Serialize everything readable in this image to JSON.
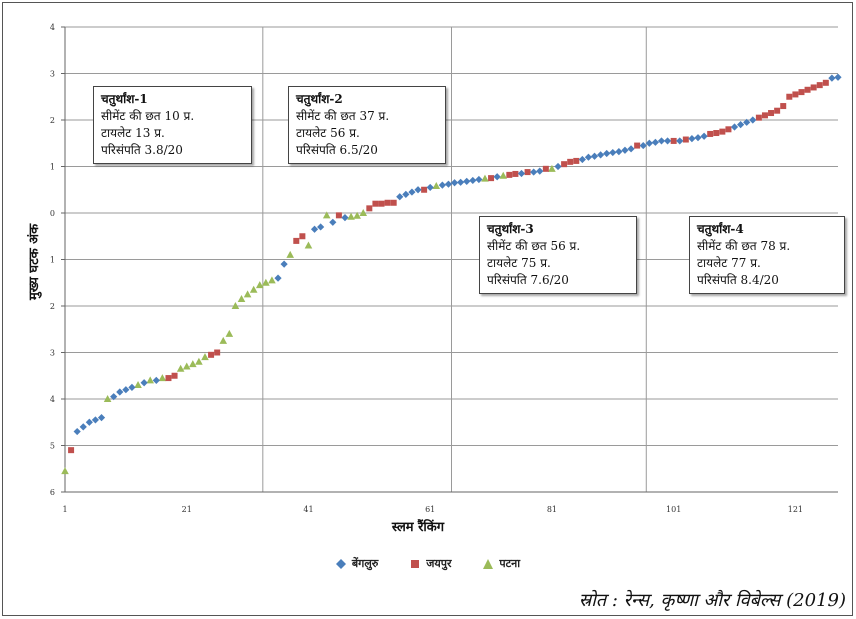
{
  "chart_data": {
    "type": "scatter",
    "xlabel": "स्लम रैंकिंग",
    "ylabel": "मुख्य घटक अंक",
    "xlim": [
      1,
      128
    ],
    "ylim": [
      -6,
      4
    ],
    "xticks": [
      1,
      21,
      41,
      61,
      81,
      101,
      121
    ],
    "yticks": [
      -6,
      -5,
      -4,
      -3,
      -2,
      -1,
      0,
      1,
      2,
      3,
      4
    ],
    "ytick_labels": [
      "6",
      "5",
      "4",
      "3",
      "2",
      "1",
      "0",
      "1",
      "2",
      "3",
      "4"
    ],
    "quadrant_dividers_x": [
      33.5,
      64.5,
      96.5
    ],
    "grid": true,
    "legend_position": "bottom",
    "colors": {
      "बेंगलुरु": "#4a7ebb",
      "जयपुर": "#c0504d",
      "पटना": "#9bbb59"
    },
    "series": [
      {
        "name": "बेंगलुरु",
        "marker": "diamond",
        "x": [
          3,
          4,
          5,
          6,
          7,
          9,
          10,
          11,
          12,
          14,
          16,
          36,
          37,
          42,
          43,
          45,
          47,
          56,
          57,
          58,
          59,
          61,
          63,
          64,
          65,
          66,
          67,
          68,
          69,
          72,
          76,
          78,
          79,
          82,
          86,
          87,
          88,
          89,
          90,
          91,
          92,
          93,
          94,
          96,
          97,
          98,
          99,
          100,
          102,
          104,
          105,
          106,
          111,
          112,
          113,
          114,
          127,
          128
        ],
        "y": [
          -4.7,
          -4.6,
          -4.5,
          -4.45,
          -4.4,
          -3.95,
          -3.85,
          -3.8,
          -3.75,
          -3.65,
          -3.6,
          -1.4,
          -1.1,
          -0.35,
          -0.3,
          -0.2,
          -0.1,
          0.35,
          0.4,
          0.45,
          0.5,
          0.55,
          0.6,
          0.62,
          0.65,
          0.66,
          0.68,
          0.7,
          0.72,
          0.78,
          0.85,
          0.88,
          0.9,
          1.0,
          1.15,
          1.2,
          1.22,
          1.25,
          1.28,
          1.3,
          1.32,
          1.35,
          1.38,
          1.45,
          1.5,
          1.52,
          1.55,
          1.55,
          1.55,
          1.6,
          1.62,
          1.65,
          1.85,
          1.9,
          1.95,
          2.0,
          2.9,
          2.92
        ]
      },
      {
        "name": "जयपुर",
        "marker": "square",
        "x": [
          2,
          18,
          19,
          25,
          26,
          39,
          40,
          46,
          51,
          52,
          53,
          54,
          55,
          60,
          71,
          74,
          75,
          77,
          80,
          83,
          84,
          85,
          95,
          101,
          103,
          107,
          108,
          109,
          110,
          115,
          116,
          117,
          118,
          119,
          120,
          121,
          122,
          123,
          124,
          125,
          126
        ],
        "y": [
          -5.1,
          -3.55,
          -3.5,
          -3.05,
          -3.0,
          -0.6,
          -0.5,
          -0.05,
          0.1,
          0.2,
          0.2,
          0.22,
          0.22,
          0.5,
          0.75,
          0.82,
          0.84,
          0.88,
          0.95,
          1.05,
          1.1,
          1.12,
          1.45,
          1.55,
          1.58,
          1.7,
          1.72,
          1.75,
          1.8,
          2.05,
          2.1,
          2.15,
          2.2,
          2.3,
          2.5,
          2.55,
          2.6,
          2.65,
          2.7,
          2.75,
          2.8
        ]
      },
      {
        "name": "पटना",
        "marker": "triangle",
        "x": [
          1,
          8,
          13,
          15,
          17,
          20,
          21,
          22,
          23,
          24,
          27,
          28,
          29,
          30,
          31,
          32,
          33,
          34,
          35,
          38,
          41,
          44,
          48,
          49,
          50,
          62,
          70,
          73,
          81
        ],
        "y": [
          -5.55,
          -4.0,
          -3.7,
          -3.6,
          -3.55,
          -3.35,
          -3.3,
          -3.25,
          -3.2,
          -3.1,
          -2.75,
          -2.6,
          -2.0,
          -1.85,
          -1.75,
          -1.65,
          -1.55,
          -1.5,
          -1.45,
          -0.9,
          -0.7,
          -0.05,
          -0.08,
          -0.06,
          0.0,
          0.58,
          0.74,
          0.8,
          0.95
        ]
      }
    ]
  },
  "quadrants": [
    {
      "title": "चतुर्थांश-1",
      "line1": "सीमेंट की छत 10 प्र.",
      "line2": "टायलेट 13 प्र.",
      "line3": "परिसंपति 3.8/20"
    },
    {
      "title": "चतुर्थांश-2",
      "line1": "सीमेंट की छत 37 प्र.",
      "line2": "टायलेट 56 प्र.",
      "line3": "परिसंपति 6.5/20"
    },
    {
      "title": "चतुर्थांश-3",
      "line1": "सीमेंट की छत 56 प्र.",
      "line2": "टायलेट 75 प्र.",
      "line3": "परिसंपति 7.6/20"
    },
    {
      "title": "चतुर्थांश-4",
      "line1": "सीमेंट की छत 78 प्र.",
      "line2": "टायलेट 77 प्र.",
      "line3": "परिसंपति 8.4/20"
    }
  ],
  "legend": [
    {
      "label": "बेंगलुरु",
      "color": "#4a7ebb",
      "marker": "diamond"
    },
    {
      "label": "जयपुर",
      "color": "#c0504d",
      "marker": "square"
    },
    {
      "label": "पटना",
      "color": "#9bbb59",
      "marker": "triangle"
    }
  ],
  "source": "स्रोत : रेन्स, कृष्णा और विबेल्स (2019)"
}
